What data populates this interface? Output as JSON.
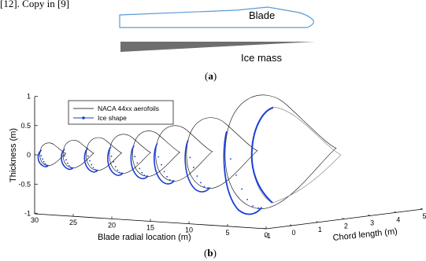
{
  "header_text": "[12]. Copy in [9]",
  "panel_a": {
    "blade_label": "Blade",
    "ice_label": "Ice mass",
    "caption_open": "(",
    "caption_letter": "a",
    "caption_close": ")",
    "colors": {
      "blade_outline": "#5b9bd5",
      "ice_fill": "#6e6e6e"
    }
  },
  "panel_b": {
    "caption_open": "(",
    "caption_letter": "b",
    "caption_close": ")",
    "colors": {
      "aerofoil": "#000000",
      "ice": "#1a3fd6"
    }
  },
  "chart_data": {
    "type": "line",
    "projection": "3d",
    "legend": {
      "position": "top-left",
      "entries": [
        {
          "name": "NACA 44xx aerofoils",
          "color": "#000000",
          "marker": "none"
        },
        {
          "name": "Ice shape",
          "color": "#1a3fd6",
          "marker": "point"
        }
      ]
    },
    "axes": {
      "z": {
        "label": "Thickness (m)",
        "ticks": [
          "1",
          "0.5",
          "0",
          "-0.5",
          "-1"
        ],
        "range": [
          -1,
          1
        ]
      },
      "x": {
        "label": "Blade radial location (m)",
        "ticks": [
          "30",
          "25",
          "20",
          "15",
          "10",
          "5",
          "0"
        ],
        "range": [
          0,
          30
        ]
      },
      "y": {
        "label": "Chord length (m)",
        "ticks": [
          "-1",
          "0",
          "1",
          "2",
          "3",
          "4",
          "5"
        ],
        "range": [
          -1,
          5
        ]
      }
    },
    "grid": false,
    "sections": [
      {
        "radial_m": 28.5,
        "chord_m": 0.9
      },
      {
        "radial_m": 25.5,
        "chord_m": 1.1
      },
      {
        "radial_m": 22.5,
        "chord_m": 1.3
      },
      {
        "radial_m": 19.5,
        "chord_m": 1.55
      },
      {
        "radial_m": 16.5,
        "chord_m": 1.8
      },
      {
        "radial_m": 13.5,
        "chord_m": 2.2
      },
      {
        "radial_m": 9.5,
        "chord_m": 2.8
      },
      {
        "radial_m": 4.5,
        "chord_m": 4.5
      }
    ]
  }
}
